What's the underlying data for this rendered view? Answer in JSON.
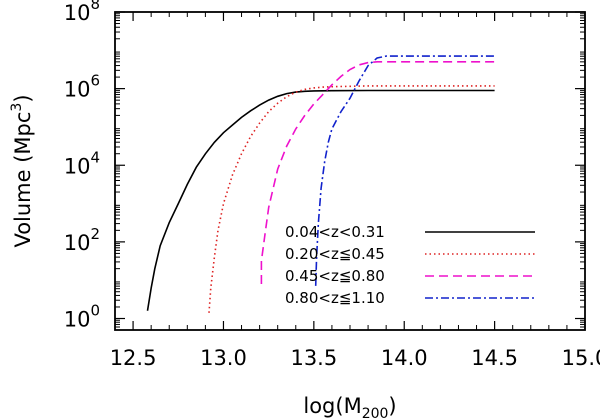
{
  "chart_data": {
    "type": "line",
    "title": "",
    "xlabel": {
      "base": "log(M",
      "sub": "200",
      "close": ")"
    },
    "ylabel": {
      "base": "Volume  (Mpc",
      "sup": "3",
      "close": ")"
    },
    "xlim": [
      12.4,
      15.0
    ],
    "ylim_log10": [
      -0.3,
      8.0
    ],
    "y_scale": "log",
    "x_ticks": [
      12.5,
      13.0,
      13.5,
      14.0,
      14.5,
      15.0
    ],
    "x_tick_labels": [
      "12.5",
      "13.0",
      "13.5",
      "14.0",
      "14.5",
      "15.0"
    ],
    "y_ticks_log10": [
      0,
      2,
      4,
      6,
      8
    ],
    "y_tick_labels": [
      {
        "base": "10",
        "exp": "0"
      },
      {
        "base": "10",
        "exp": "2"
      },
      {
        "base": "10",
        "exp": "4"
      },
      {
        "base": "10",
        "exp": "6"
      },
      {
        "base": "10",
        "exp": "8"
      }
    ],
    "legend_position": "bottom-right",
    "series": [
      {
        "name": "0.04<z<0.31",
        "color": "#000000",
        "dash": "solid",
        "x": [
          12.58,
          12.6,
          12.62,
          12.65,
          12.7,
          12.75,
          12.8,
          12.85,
          12.9,
          12.95,
          13.0,
          13.05,
          13.1,
          13.15,
          13.2,
          13.25,
          13.3,
          13.35,
          13.4,
          13.45,
          13.5,
          13.6,
          13.8,
          14.0,
          14.2,
          14.5
        ],
        "log10_y": [
          0.2,
          0.8,
          1.3,
          1.9,
          2.5,
          3.0,
          3.5,
          3.95,
          4.3,
          4.6,
          4.85,
          5.05,
          5.25,
          5.42,
          5.57,
          5.7,
          5.8,
          5.87,
          5.91,
          5.93,
          5.94,
          5.945,
          5.95,
          5.95,
          5.95,
          5.95
        ]
      },
      {
        "name": "0.20<z≦0.45",
        "color": "#dd2222",
        "dash": "dot",
        "x": [
          12.92,
          12.93,
          12.95,
          12.97,
          13.0,
          13.05,
          13.1,
          13.15,
          13.2,
          13.25,
          13.3,
          13.35,
          13.4,
          13.45,
          13.5,
          13.55,
          13.6,
          13.7,
          13.8,
          14.0,
          14.2,
          14.5
        ],
        "log10_y": [
          0.15,
          0.8,
          1.6,
          2.3,
          3.0,
          3.75,
          4.3,
          4.75,
          5.1,
          5.4,
          5.62,
          5.79,
          5.91,
          5.98,
          6.02,
          6.04,
          6.05,
          6.06,
          6.07,
          6.07,
          6.07,
          6.07
        ]
      },
      {
        "name": "0.45<z≦0.80",
        "color": "#ee11cc",
        "dash": "dash",
        "x": [
          13.21,
          13.21,
          13.23,
          13.25,
          13.28,
          13.3,
          13.35,
          13.4,
          13.45,
          13.5,
          13.55,
          13.6,
          13.65,
          13.7,
          13.75,
          13.8,
          13.85,
          13.9,
          14.0,
          14.2,
          14.5
        ],
        "log10_y": [
          0.9,
          1.5,
          2.2,
          2.9,
          3.5,
          3.9,
          4.5,
          4.95,
          5.3,
          5.6,
          5.85,
          6.1,
          6.32,
          6.5,
          6.62,
          6.68,
          6.7,
          6.7,
          6.7,
          6.7,
          6.7
        ]
      },
      {
        "name": "0.80<z≦1.10",
        "color": "#1122cc",
        "dash": "dashdot",
        "x": [
          13.51,
          13.515,
          13.525,
          13.54,
          13.56,
          13.58,
          13.6,
          13.65,
          13.7,
          13.75,
          13.8,
          13.85,
          13.9,
          14.0,
          14.2,
          14.5
        ],
        "log10_y": [
          0.85,
          1.6,
          2.5,
          3.4,
          4.1,
          4.6,
          4.95,
          5.4,
          5.75,
          6.2,
          6.6,
          6.8,
          6.85,
          6.85,
          6.85,
          6.85
        ]
      }
    ]
  }
}
